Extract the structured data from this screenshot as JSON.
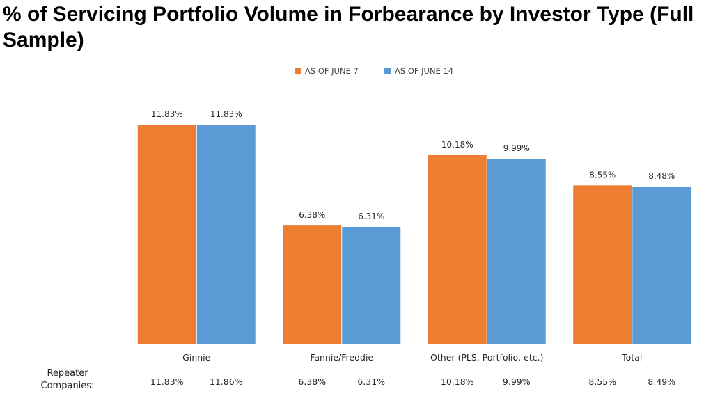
{
  "title": "% of Servicing Portfolio Volume in Forbearance by Investor Type (Full Sample)",
  "chart_data": {
    "type": "bar",
    "categories": [
      "Ginnie",
      "Fannie/Freddie",
      "Other (PLS, Portfolio, etc.)",
      "Total"
    ],
    "series": [
      {
        "name": "AS OF JUNE 7",
        "color": "#ED7D31",
        "values": [
          11.83,
          6.38,
          10.18,
          8.55
        ],
        "labels": [
          "11.83%",
          "6.38%",
          "10.18%",
          "8.55%"
        ]
      },
      {
        "name": "AS OF JUNE 14",
        "color": "#5B9BD5",
        "values": [
          11.83,
          6.31,
          9.99,
          8.48
        ],
        "labels": [
          "11.83%",
          "6.31%",
          "9.99%",
          "8.48%"
        ]
      }
    ],
    "ylim": [
      0,
      14
    ],
    "grid": false,
    "legend": "top-center",
    "repeater": {
      "label": "Repeater Companies:",
      "values": [
        [
          "11.83%",
          "11.86%"
        ],
        [
          "6.38%",
          "6.31%"
        ],
        [
          "10.18%",
          "9.99%"
        ],
        [
          "8.55%",
          "8.49%"
        ]
      ]
    }
  }
}
